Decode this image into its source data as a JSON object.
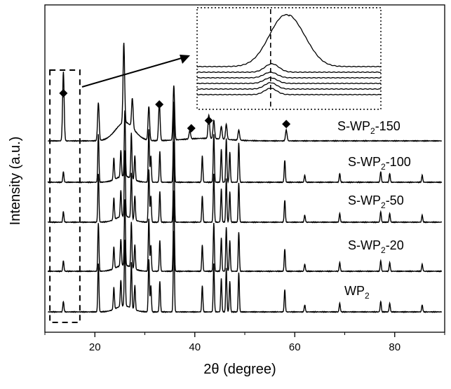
{
  "chart_data": {
    "type": "line",
    "xlabel": "2θ (degree)",
    "ylabel": "Intensity (a.u.)",
    "xlim": [
      10,
      90
    ],
    "xticks": [
      20,
      40,
      60,
      80
    ],
    "grid": false,
    "legend": "none; series names written beside each trace on the right",
    "series": [
      {
        "label_base": "S-WP",
        "label_sub": "2",
        "label_tail": "-150",
        "offset": 4
      },
      {
        "label_base": "S-WP",
        "label_sub": "2",
        "label_tail": "-100",
        "offset": 3
      },
      {
        "label_base": "S-WP",
        "label_sub": "2",
        "label_tail": "-50",
        "offset": 2
      },
      {
        "label_base": "S-WP",
        "label_sub": "2",
        "label_tail": "-20",
        "offset": 1
      },
      {
        "label_base": "WP",
        "label_sub": "2",
        "label_tail": "",
        "offset": 0
      }
    ],
    "wp2_peaks": [
      {
        "x": 13.7,
        "h": 0.12
      },
      {
        "x": 20.7,
        "h": 0.55
      },
      {
        "x": 23.8,
        "h": 0.25
      },
      {
        "x": 25.2,
        "h": 0.3
      },
      {
        "x": 26.0,
        "h": 0.75
      },
      {
        "x": 27.3,
        "h": 0.52
      },
      {
        "x": 28.0,
        "h": 0.28
      },
      {
        "x": 30.8,
        "h": 0.6
      },
      {
        "x": 31.2,
        "h": 0.3
      },
      {
        "x": 33.0,
        "h": 0.35
      },
      {
        "x": 35.8,
        "h": 0.92
      },
      {
        "x": 41.5,
        "h": 0.3
      },
      {
        "x": 43.8,
        "h": 0.55
      },
      {
        "x": 45.3,
        "h": 0.38
      },
      {
        "x": 46.3,
        "h": 0.5
      },
      {
        "x": 47.0,
        "h": 0.35
      },
      {
        "x": 48.8,
        "h": 0.45
      },
      {
        "x": 58.0,
        "h": 0.25
      },
      {
        "x": 62.0,
        "h": 0.08
      },
      {
        "x": 69.0,
        "h": 0.1
      },
      {
        "x": 77.2,
        "h": 0.12
      },
      {
        "x": 79.0,
        "h": 0.1
      },
      {
        "x": 85.5,
        "h": 0.08
      }
    ],
    "s_wp2_150_peaks": [
      {
        "x": 13.7,
        "h": 0.82
      },
      {
        "x": 20.7,
        "h": 0.45
      },
      {
        "x": 25.8,
        "h": 0.95
      },
      {
        "x": 27.5,
        "h": 0.35
      },
      {
        "x": 30.8,
        "h": 0.4
      },
      {
        "x": 32.9,
        "h": 0.45
      },
      {
        "x": 35.8,
        "h": 0.65
      },
      {
        "x": 39.0,
        "h": 0.1
      },
      {
        "x": 42.8,
        "h": 0.28
      },
      {
        "x": 43.8,
        "h": 0.22
      },
      {
        "x": 45.3,
        "h": 0.15
      },
      {
        "x": 46.3,
        "h": 0.18
      },
      {
        "x": 48.8,
        "h": 0.12
      },
      {
        "x": 58.3,
        "h": 0.13
      }
    ],
    "diamond_marker_x": [
      13.7,
      32.9,
      39.3,
      42.8,
      58.3
    ],
    "highlight_box_x_range": [
      11,
      17
    ],
    "inset": {
      "x_range": [
        12.5,
        15.5
      ],
      "dashed_reference_x": 13.7
    }
  }
}
